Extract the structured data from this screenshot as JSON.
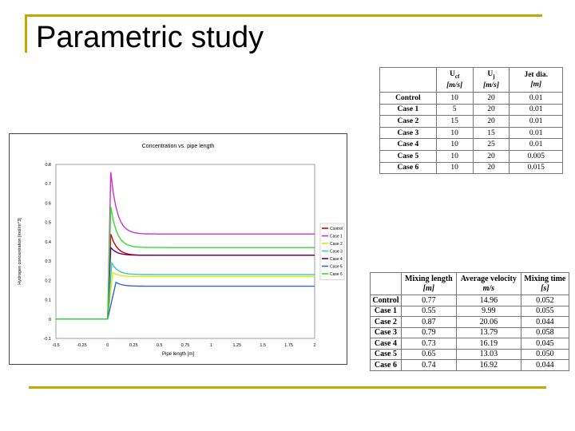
{
  "slide": {
    "title": "Parametric study"
  },
  "table_params": {
    "columns": [
      {
        "label": "U",
        "sub": "cf",
        "unit": "[m/s]"
      },
      {
        "label": "U",
        "sub": "j",
        "unit": "[m/s]"
      },
      {
        "label": "Jet dia.",
        "sub": "",
        "unit": "[m]"
      }
    ],
    "rows": [
      {
        "case": "Control",
        "cells": [
          "10",
          "20",
          "0.01"
        ]
      },
      {
        "case": "Case 1",
        "cells": [
          "5",
          "20",
          "0.01"
        ]
      },
      {
        "case": "Case 2",
        "cells": [
          "15",
          "20",
          "0.01"
        ]
      },
      {
        "case": "Case 3",
        "cells": [
          "10",
          "15",
          "0.01"
        ]
      },
      {
        "case": "Case 4",
        "cells": [
          "10",
          "25",
          "0.01"
        ]
      },
      {
        "case": "Case 5",
        "cells": [
          "10",
          "20",
          "0.005"
        ]
      },
      {
        "case": "Case 6",
        "cells": [
          "10",
          "20",
          "0.015"
        ]
      }
    ]
  },
  "table_results": {
    "columns": [
      {
        "label": "Mixing length",
        "unit": "[m]"
      },
      {
        "label": "Average velocity",
        "unit": "m/s"
      },
      {
        "label": "Mixing time",
        "unit": "[s]"
      }
    ],
    "rows": [
      {
        "case": "Control",
        "cells": [
          "0.77",
          "14.96",
          "0.052"
        ]
      },
      {
        "case": "Case 1",
        "cells": [
          "0.55",
          "9.99",
          "0.055"
        ]
      },
      {
        "case": "Case 2",
        "cells": [
          "0.87",
          "20.06",
          "0.044"
        ]
      },
      {
        "case": "Case 3",
        "cells": [
          "0.79",
          "13.79",
          "0.058"
        ]
      },
      {
        "case": "Case 4",
        "cells": [
          "0.73",
          "16.19",
          "0.045"
        ]
      },
      {
        "case": "Case 5",
        "cells": [
          "0.65",
          "13.03",
          "0.050"
        ]
      },
      {
        "case": "Case 6",
        "cells": [
          "0.74",
          "16.92",
          "0.044"
        ]
      }
    ]
  },
  "chart_data": {
    "type": "line",
    "title": "Concentration vs. pipe length",
    "xlabel": "Pipe length [m]",
    "ylabel": "Hydrogen concentration [mol/m^3]",
    "xlim": [
      -0.5,
      2
    ],
    "ylim": [
      -0.1,
      0.8
    ],
    "xticks": [
      "-0.5",
      "-0.25",
      "0",
      "0.25",
      "0.5",
      "0.75",
      "1",
      "1.25",
      "1.5",
      "1.75",
      "2"
    ],
    "yticks": [
      "-0.1",
      "0",
      "0.1",
      "0.2",
      "0.3",
      "0.4",
      "0.5",
      "0.6",
      "0.7",
      "0.8"
    ],
    "grid": false,
    "legend": "right",
    "series": [
      {
        "name": "Control",
        "color": "#cc0000",
        "peak": 0.44,
        "plateau": 0.33,
        "x_start": 0.0,
        "x_peak": 0.03
      },
      {
        "name": "Case 1",
        "color": "#cc33cc",
        "peak": 0.76,
        "plateau": 0.44,
        "x_start": 0.0,
        "x_peak": 0.03
      },
      {
        "name": "Case 2",
        "color": "#e8e800",
        "peak": 0.24,
        "plateau": 0.22,
        "x_start": 0.0,
        "x_peak": 0.05
      },
      {
        "name": "Case 3",
        "color": "#33cccc",
        "peak": 0.29,
        "plateau": 0.23,
        "x_start": 0.0,
        "x_peak": 0.04
      },
      {
        "name": "Case 4",
        "color": "#660066",
        "peak": 0.37,
        "plateau": 0.33,
        "x_start": 0.0,
        "x_peak": 0.03
      },
      {
        "name": "Case 5",
        "color": "#3366cc",
        "peak": 0.19,
        "plateau": 0.17,
        "x_start": 0.0,
        "x_peak": 0.08
      },
      {
        "name": "Case 6",
        "color": "#33dd33",
        "peak": 0.58,
        "plateau": 0.37,
        "x_start": 0.0,
        "x_peak": 0.03
      }
    ]
  }
}
